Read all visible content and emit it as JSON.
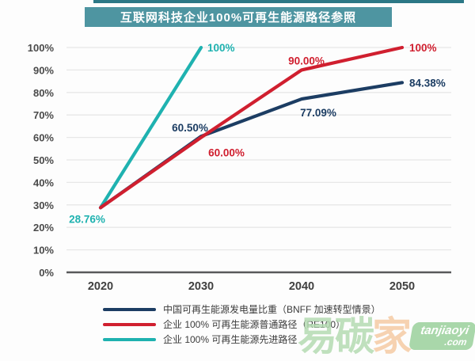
{
  "title": "互联网科技企业100%可再生能源路径参照",
  "colors": {
    "banner_bg": "#4E95A1",
    "banner_strip": "#2C7886",
    "navy": "#1C3D63",
    "red": "#D01F2F",
    "teal": "#1FB2B0",
    "grid": "#E7E7E7",
    "axis": "#58595B",
    "tick_text": "#4A4A4A",
    "x_text": "#3F3F3F",
    "legend_text": "#3B3B3B",
    "wm_green": "#B5DCB2",
    "wm_orange": "#F5CBA4",
    "badge_bg": "#A9D7AA",
    "badge_text": "#FFFFFF"
  },
  "chart_data": {
    "type": "line",
    "title": "互联网科技企业100%可再生能源路径参照",
    "x": [
      "2020",
      "2030",
      "2040",
      "2050"
    ],
    "xlabel": "",
    "ylabel": "",
    "ylim": [
      0,
      100
    ],
    "y_ticks": [
      "0%",
      "10%",
      "20%",
      "30%",
      "40%",
      "50%",
      "60%",
      "70%",
      "80%",
      "90%",
      "100%"
    ],
    "grid": true,
    "legend_position": "bottom",
    "series": [
      {
        "name": "中国可再生能源发电量比重（BNFF 加速转型情景）",
        "color_key": "navy",
        "values": [
          28.76,
          60.5,
          77.09,
          84.38
        ],
        "point_labels": [
          {
            "i": 1,
            "text": "60.50%",
            "dx": -14,
            "dy": -6,
            "anchor": "middle"
          },
          {
            "i": 2,
            "text": "77.09%",
            "dx": 21,
            "dy": 22,
            "anchor": "middle"
          },
          {
            "i": 3,
            "text": "84.38%",
            "dx": 9,
            "dy": 5,
            "anchor": "start"
          }
        ]
      },
      {
        "name": "企业 100% 可再生能源普通路径（RE100）",
        "color_key": "red",
        "values": [
          28.76,
          60.0,
          90.0,
          100
        ],
        "point_labels": [
          {
            "i": 1,
            "text": "60.00%",
            "dx": 32,
            "dy": 24,
            "anchor": "middle"
          },
          {
            "i": 2,
            "text": "90.00%",
            "dx": 6,
            "dy": -7,
            "anchor": "middle"
          },
          {
            "i": 3,
            "text": "100%",
            "dx": 9,
            "dy": 5,
            "anchor": "start"
          }
        ]
      },
      {
        "name": "企业 100% 可再生能源先进路径",
        "color_key": "teal",
        "values": [
          28.76,
          100,
          null,
          null
        ],
        "point_labels": [
          {
            "i": 0,
            "text": "28.76%",
            "dx": -17,
            "dy": 19,
            "anchor": "middle"
          },
          {
            "i": 1,
            "text": "100%",
            "dx": 8,
            "dy": 5,
            "anchor": "start"
          }
        ]
      }
    ]
  },
  "watermark": {
    "green_text": "易碳",
    "orange_text": "家",
    "badge_line1": "tanjiaoyi",
    "badge_line2": ".com"
  }
}
